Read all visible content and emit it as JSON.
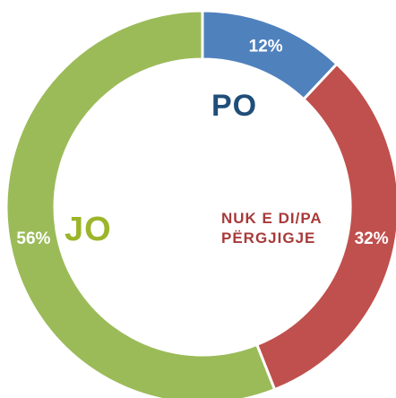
{
  "chart_data": {
    "type": "pie",
    "donut": true,
    "categories": [
      "PO",
      "NUK E DI/PA PËRGJIGJE",
      "JO"
    ],
    "values": [
      12,
      32,
      56
    ],
    "value_labels": [
      "12%",
      "32%",
      "56%"
    ],
    "colors": [
      "#4f81bd",
      "#c0504d",
      "#9bbb59"
    ],
    "label_colors": [
      "#1f4e79",
      "#a83a3a",
      "#9cb52a"
    ]
  }
}
